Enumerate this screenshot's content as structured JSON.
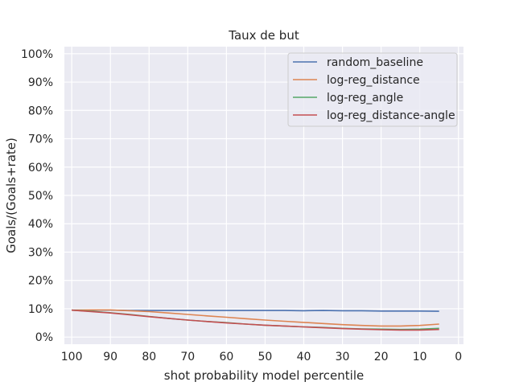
{
  "chart_data": {
    "type": "line",
    "title": "Taux de but",
    "xlabel": "shot probability model percentile",
    "ylabel": "Goals/(Goals+rate)",
    "xlim": [
      101.9,
      -1.3
    ],
    "ylim": [
      -2.5,
      102.5
    ],
    "x_ticks": [
      100,
      90,
      80,
      70,
      60,
      50,
      40,
      30,
      20,
      10,
      0
    ],
    "x_tick_labels": [
      "100",
      "90",
      "80",
      "70",
      "60",
      "50",
      "40",
      "30",
      "20",
      "10",
      "0"
    ],
    "y_ticks": [
      0,
      10,
      20,
      30,
      40,
      50,
      60,
      70,
      80,
      90,
      100
    ],
    "y_tick_labels": [
      "0%",
      "10%",
      "20%",
      "30%",
      "40%",
      "50%",
      "60%",
      "70%",
      "80%",
      "90%",
      "100%"
    ],
    "grid": true,
    "legend_position": "top-right",
    "series": [
      {
        "name": "random_baseline",
        "color": "#4c72b0",
        "x": [
          100,
          95,
          90,
          85,
          80,
          75,
          70,
          65,
          60,
          55,
          50,
          45,
          40,
          35,
          30,
          25,
          20,
          15,
          10,
          5
        ],
        "y": [
          9.5,
          9.5,
          9.5,
          9.4,
          9.4,
          9.4,
          9.4,
          9.4,
          9.4,
          9.4,
          9.4,
          9.4,
          9.3,
          9.4,
          9.3,
          9.3,
          9.2,
          9.2,
          9.2,
          9.1
        ]
      },
      {
        "name": "log-reg_distance",
        "color": "#dd8452",
        "x": [
          100,
          95,
          90,
          85,
          80,
          75,
          70,
          65,
          60,
          55,
          50,
          45,
          40,
          35,
          30,
          25,
          20,
          15,
          10,
          5
        ],
        "y": [
          9.5,
          9.6,
          9.6,
          9.3,
          9.0,
          8.5,
          8.0,
          7.5,
          7.0,
          6.5,
          6.0,
          5.6,
          5.2,
          4.8,
          4.4,
          4.1,
          3.9,
          3.9,
          4.1,
          4.6
        ]
      },
      {
        "name": "log-reg_angle",
        "color": "#55a868",
        "x": [
          100,
          95,
          90,
          85,
          80,
          75,
          70,
          65,
          60,
          55,
          50,
          45,
          40,
          35,
          30,
          25,
          20,
          15,
          10,
          5
        ],
        "y": [
          9.5,
          9.1,
          8.6,
          8.0,
          7.3,
          6.6,
          6.0,
          5.5,
          5.1,
          4.6,
          4.2,
          3.9,
          3.6,
          3.4,
          3.1,
          2.9,
          2.8,
          2.7,
          2.8,
          3.1
        ]
      },
      {
        "name": "log-reg_distance-angle",
        "color": "#c44e52",
        "x": [
          100,
          95,
          90,
          85,
          80,
          75,
          70,
          65,
          60,
          55,
          50,
          45,
          40,
          35,
          30,
          25,
          20,
          15,
          10,
          5
        ],
        "y": [
          9.5,
          9.0,
          8.5,
          7.9,
          7.2,
          6.6,
          6.0,
          5.5,
          5.0,
          4.6,
          4.2,
          3.9,
          3.6,
          3.3,
          3.0,
          2.8,
          2.6,
          2.5,
          2.5,
          2.7
        ]
      }
    ]
  }
}
